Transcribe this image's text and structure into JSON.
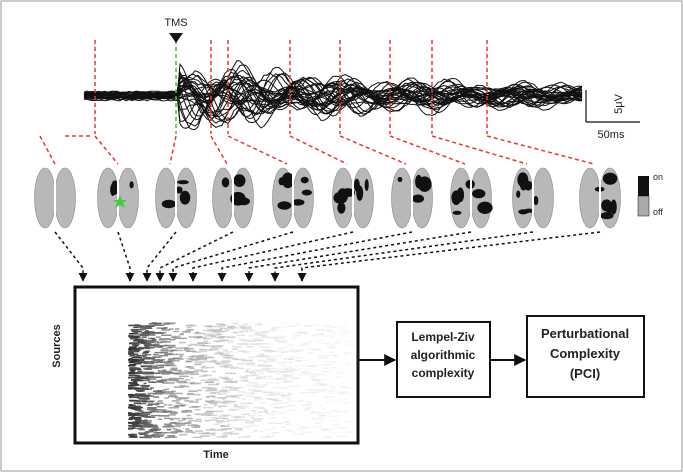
{
  "header": {
    "stimulus": "TMS"
  },
  "scale_bar": {
    "amplitude": "5μV",
    "time": "50ms"
  },
  "colorbar": {
    "on": "on",
    "off": "off"
  },
  "matrix": {
    "y_label": "Sources",
    "x_label": "Time"
  },
  "nodes": [
    {
      "lines": [
        "Lempel-Ziv",
        "algorithmic",
        "complexity"
      ]
    },
    {
      "lines": [
        "Perturbational",
        "Complexity",
        "(PCI)"
      ]
    }
  ]
}
